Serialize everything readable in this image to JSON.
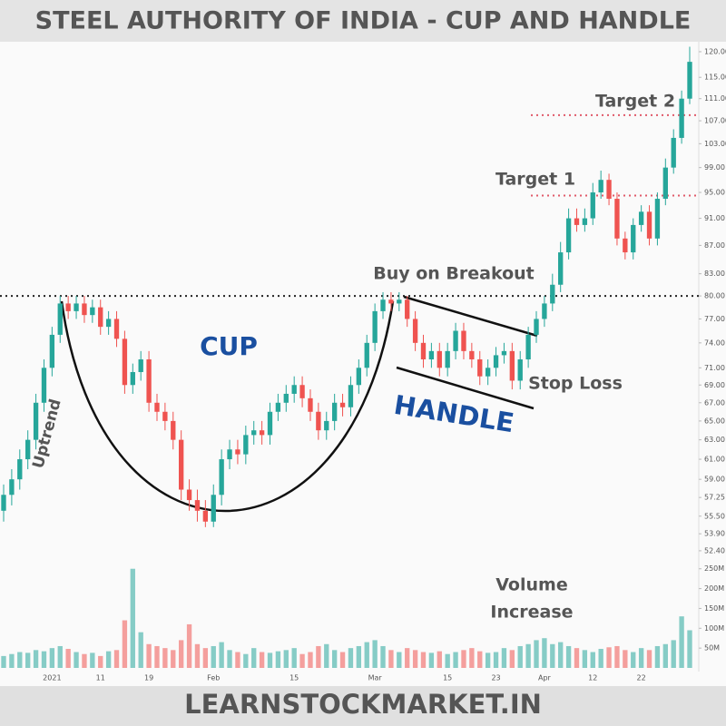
{
  "chart_data": {
    "type": "candlestick",
    "title": "STEEL AUTHORITY OF INDIA - CUP AND HANDLE",
    "categories": [
      null,
      null,
      null,
      null,
      null,
      null,
      "2021",
      null,
      null,
      null,
      null,
      null,
      "11",
      null,
      null,
      null,
      null,
      null,
      "19",
      null,
      null,
      null,
      null,
      null,
      null,
      null,
      "Feb",
      null,
      null,
      null,
      null,
      null,
      null,
      null,
      null,
      null,
      "15",
      null,
      null,
      null,
      null,
      null,
      null,
      null,
      null,
      null,
      "Mar",
      null,
      null,
      null,
      null,
      null,
      null,
      null,
      null,
      "15",
      null,
      null,
      null,
      null,
      null,
      "23",
      null,
      null,
      null,
      null,
      null,
      "Apr",
      null,
      null,
      null,
      null,
      null,
      "12",
      null,
      null,
      null,
      null,
      null,
      "22",
      null,
      null,
      null,
      null,
      null,
      null
    ],
    "open": [
      56,
      57.5,
      59,
      61,
      63,
      67,
      71,
      75,
      79,
      78,
      79,
      77.5,
      78.5,
      76,
      77,
      74.5,
      69,
      70.5,
      72,
      67,
      66,
      65,
      63,
      58,
      57,
      56,
      55,
      57.5,
      61,
      62,
      61.5,
      63.5,
      64,
      63.5,
      66,
      67,
      68,
      69,
      67.5,
      66,
      64,
      65,
      67,
      66.5,
      69,
      71,
      74,
      78,
      79.5,
      79,
      79.5,
      77,
      74,
      72,
      73,
      71,
      73,
      75.5,
      73,
      72,
      70,
      71,
      72.5,
      73,
      69.5,
      72,
      75,
      77,
      79,
      81.5,
      86,
      91,
      90,
      91,
      95,
      97,
      94,
      88,
      86,
      90,
      92,
      88,
      94,
      99,
      104,
      111
    ],
    "high": [
      58.5,
      60,
      62,
      64,
      68,
      72,
      76,
      80,
      80,
      80,
      80,
      79.5,
      79.5,
      78,
      78,
      75.5,
      71.5,
      73,
      73,
      68,
      67,
      66,
      64,
      59,
      58,
      57,
      58.5,
      62,
      63,
      63,
      64.5,
      65,
      65,
      67,
      68,
      69,
      70,
      70,
      68.5,
      67,
      66,
      68,
      68,
      70,
      72,
      75,
      79,
      80.5,
      80.5,
      80.5,
      80,
      78,
      75,
      74,
      74,
      74,
      76.5,
      76.5,
      74,
      73,
      72,
      73.5,
      74,
      74,
      73,
      76,
      78,
      80,
      83,
      87.5,
      92.5,
      92.5,
      92.5,
      96.5,
      98.5,
      98,
      95,
      89,
      91,
      93,
      93,
      95,
      100.5,
      105.5,
      112.5,
      121
    ],
    "low": [
      55,
      56.5,
      58,
      60,
      62,
      66,
      70,
      74,
      77,
      77,
      76.5,
      76.5,
      75,
      75,
      73.5,
      68,
      68,
      69.5,
      66,
      65,
      64,
      62,
      57,
      56,
      55,
      54.5,
      54.5,
      56.5,
      60,
      60.5,
      60.5,
      62.5,
      62.5,
      62.5,
      65,
      66,
      67,
      66.5,
      65,
      63,
      63,
      64,
      65.5,
      65.5,
      68,
      70,
      73,
      77,
      78,
      78,
      76,
      73,
      71,
      71,
      70,
      70,
      72,
      72,
      71,
      69,
      69,
      70,
      71.5,
      68.5,
      68.5,
      71,
      74,
      76,
      78,
      80.5,
      85,
      89,
      89,
      90,
      94,
      93,
      87,
      85,
      85,
      89,
      87,
      87,
      93,
      98,
      103,
      110
    ],
    "close": [
      57.5,
      59,
      61,
      63,
      67,
      71,
      75,
      79,
      78,
      79,
      77.5,
      78.5,
      76,
      77,
      74.5,
      69,
      70.5,
      72,
      67,
      66,
      65,
      63,
      58,
      57,
      56,
      55,
      57.5,
      61,
      62,
      61.5,
      63.5,
      64,
      63.5,
      66,
      67,
      68,
      69,
      67.5,
      66,
      64,
      65,
      67,
      66.5,
      69,
      71,
      74,
      78,
      79.5,
      79,
      79.5,
      77,
      74,
      72,
      73,
      71,
      73,
      75.5,
      73,
      72,
      70,
      71,
      72.5,
      73,
      69.5,
      72,
      75,
      77,
      79,
      81.5,
      86,
      91,
      90,
      91,
      95,
      97,
      94,
      88,
      86,
      90,
      92,
      88,
      94,
      99,
      104,
      111,
      118
    ],
    "volume": [
      30,
      35,
      40,
      38,
      45,
      42,
      50,
      55,
      48,
      40,
      35,
      38,
      30,
      42,
      45,
      120,
      250,
      90,
      60,
      55,
      50,
      45,
      70,
      110,
      60,
      50,
      55,
      65,
      45,
      40,
      35,
      50,
      40,
      38,
      42,
      45,
      50,
      35,
      40,
      55,
      60,
      45,
      40,
      50,
      55,
      65,
      70,
      55,
      45,
      40,
      50,
      45,
      40,
      38,
      42,
      35,
      40,
      45,
      50,
      42,
      38,
      40,
      50,
      45,
      55,
      60,
      70,
      75,
      60,
      65,
      55,
      50,
      45,
      40,
      48,
      52,
      55,
      45,
      40,
      50,
      45,
      55,
      60,
      70,
      130,
      95
    ],
    "up_color": "#26a69a",
    "down_color": "#ef5350",
    "log_scale": true,
    "grid": false,
    "ylim": [
      52,
      122
    ],
    "yticks": [
      {
        "value": 120,
        "label": "120.00"
      },
      {
        "value": 115,
        "label": "115.00"
      },
      {
        "value": 111,
        "label": "111.00"
      },
      {
        "value": 107,
        "label": "107.00"
      },
      {
        "value": 103,
        "label": "103.00"
      },
      {
        "value": 99,
        "label": "99.00"
      },
      {
        "value": 95,
        "label": "95.00"
      },
      {
        "value": 91,
        "label": "91.00"
      },
      {
        "value": 87,
        "label": "87.00"
      },
      {
        "value": 83,
        "label": "83.00"
      },
      {
        "value": 80,
        "label": "80.00"
      },
      {
        "value": 77,
        "label": "77.00"
      },
      {
        "value": 74,
        "label": "74.00"
      },
      {
        "value": 71,
        "label": "71.00"
      },
      {
        "value": 69,
        "label": "69.00"
      },
      {
        "value": 67,
        "label": "67.00"
      },
      {
        "value": 65,
        "label": "65.00"
      },
      {
        "value": 63,
        "label": "63.00"
      },
      {
        "value": 61,
        "label": "61.00"
      },
      {
        "value": 59,
        "label": "59.00"
      },
      {
        "value": 57.25,
        "label": "57.25"
      },
      {
        "value": 55.5,
        "label": "55.50"
      },
      {
        "value": 53.9,
        "label": "53.90"
      },
      {
        "value": 52.4,
        "label": "52.40"
      }
    ],
    "y2lim": [
      0,
      270
    ],
    "y2ticks": [
      {
        "value": 250,
        "label": "250M"
      },
      {
        "value": 200,
        "label": "200M"
      },
      {
        "value": 150,
        "label": "150M"
      },
      {
        "value": 100,
        "label": "100M"
      },
      {
        "value": 50,
        "label": "50M"
      }
    ],
    "levels": {
      "breakout": 80,
      "target1": 94.5,
      "target2": 108
    },
    "annotations": {
      "uptrend": "Uptrend",
      "cup": "CUP",
      "handle": "HANDLE",
      "buy": "Buy on Breakout",
      "target1": "Target 1",
      "target2": "Target 2",
      "stop_loss": "Stop Loss",
      "volume_note": [
        "Volume",
        "Increase"
      ]
    }
  },
  "footer": "LEARNSTOCKMARKET.IN"
}
